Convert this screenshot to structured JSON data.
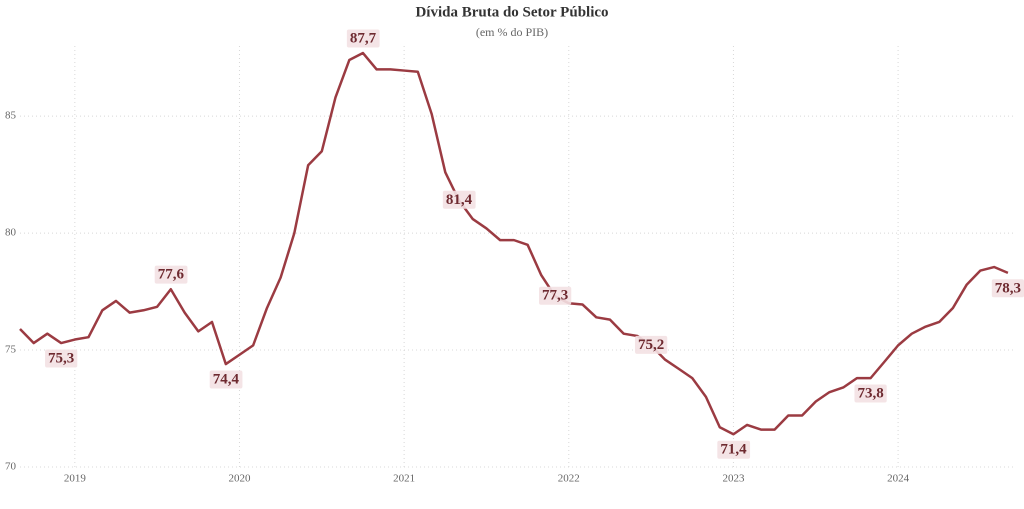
{
  "chart_data": {
    "type": "line",
    "title": "Dívida Bruta do Setor Público",
    "subtitle": "(em % do PIB)",
    "x": [
      2018.667,
      2018.75,
      2018.833,
      2018.917,
      2019,
      2019.083,
      2019.167,
      2019.25,
      2019.333,
      2019.417,
      2019.5,
      2019.583,
      2019.667,
      2019.75,
      2019.833,
      2019.917,
      2020,
      2020.083,
      2020.167,
      2020.25,
      2020.333,
      2020.417,
      2020.5,
      2020.583,
      2020.667,
      2020.75,
      2020.833,
      2020.917,
      2021,
      2021.083,
      2021.167,
      2021.25,
      2021.333,
      2021.417,
      2021.5,
      2021.583,
      2021.667,
      2021.75,
      2021.833,
      2021.917,
      2022,
      2022.083,
      2022.167,
      2022.25,
      2022.333,
      2022.417,
      2022.5,
      2022.583,
      2022.667,
      2022.75,
      2022.833,
      2022.917,
      2023,
      2023.083,
      2023.167,
      2023.25,
      2023.333,
      2023.417,
      2023.5,
      2023.583,
      2023.667,
      2023.75,
      2023.833,
      2023.917,
      2024,
      2024.083,
      2024.167,
      2024.25,
      2024.333,
      2024.417,
      2024.5,
      2024.583,
      2024.667
    ],
    "series": [
      {
        "color": "#9b3b42",
        "values": [
          75.9,
          75.3,
          75.7,
          75.3,
          75.45,
          75.55,
          76.7,
          77.1,
          76.6,
          76.7,
          76.85,
          77.6,
          76.6,
          75.8,
          76.2,
          74.4,
          74.8,
          75.2,
          76.8,
          78.1,
          80.0,
          82.9,
          83.5,
          85.8,
          87.4,
          87.7,
          87.0,
          87.0,
          86.95,
          86.9,
          85.1,
          82.6,
          81.4,
          80.6,
          80.2,
          79.7,
          79.7,
          79.5,
          78.2,
          77.3,
          77.0,
          76.95,
          76.4,
          76.3,
          75.7,
          75.6,
          75.2,
          74.6,
          74.2,
          73.8,
          73.0,
          71.7,
          71.4,
          71.8,
          71.6,
          71.6,
          72.2,
          72.2,
          72.8,
          73.2,
          73.4,
          73.8,
          73.8,
          74.5,
          75.2,
          75.7,
          76.0,
          76.2,
          76.8,
          77.8,
          78.4,
          78.55,
          78.3
        ],
        "value_labels": [
          null,
          null,
          null,
          "75,3",
          null,
          null,
          null,
          null,
          null,
          null,
          null,
          "77,6",
          null,
          null,
          null,
          "74,4",
          null,
          null,
          null,
          null,
          null,
          null,
          null,
          null,
          null,
          "87,7",
          null,
          null,
          null,
          null,
          null,
          null,
          "81,4",
          null,
          null,
          null,
          null,
          null,
          null,
          "77,3",
          null,
          null,
          null,
          null,
          null,
          null,
          "75,2",
          null,
          null,
          null,
          null,
          null,
          "71,4",
          null,
          null,
          null,
          null,
          null,
          null,
          null,
          null,
          null,
          "73,8",
          null,
          null,
          null,
          null,
          null,
          null,
          null,
          null,
          null,
          "78,3"
        ]
      }
    ],
    "xlim": [
      2018.667,
      2024.71
    ],
    "xticks": [
      2019,
      2020,
      2021,
      2022,
      2023,
      2024
    ],
    "ylim": [
      70,
      88
    ],
    "yticks": [
      70,
      75,
      80,
      85
    ],
    "grid": true
  }
}
